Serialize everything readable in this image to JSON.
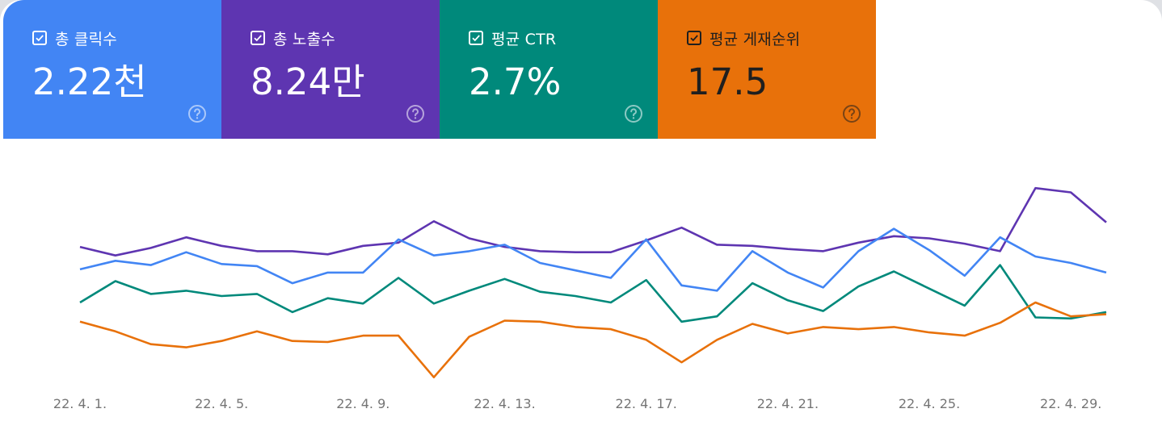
{
  "metrics": [
    {
      "label": "총 클릭수",
      "value": "2.22천",
      "checked": true,
      "color": "#4285f4",
      "text_color": "#ffffff"
    },
    {
      "label": "총 노출수",
      "value": "8.24만",
      "checked": true,
      "color": "#5e35b1",
      "text_color": "#ffffff"
    },
    {
      "label": "평균 CTR",
      "value": "2.7%",
      "checked": true,
      "color": "#00897b",
      "text_color": "#ffffff"
    },
    {
      "label": "평균 게재순위",
      "value": "17.5",
      "checked": true,
      "color": "#e8710a",
      "text_color": "#1f1f1f"
    }
  ],
  "chart_data": {
    "type": "line",
    "x": [
      "22. 4. 1.",
      "22. 4. 2.",
      "22. 4. 3.",
      "22. 4. 4.",
      "22. 4. 5.",
      "22. 4. 6.",
      "22. 4. 7.",
      "22. 4. 8.",
      "22. 4. 9.",
      "22. 4. 10.",
      "22. 4. 11.",
      "22. 4. 12.",
      "22. 4. 13.",
      "22. 4. 14.",
      "22. 4. 15.",
      "22. 4. 16.",
      "22. 4. 17.",
      "22. 4. 18.",
      "22. 4. 19.",
      "22. 4. 20.",
      "22. 4. 21.",
      "22. 4. 22.",
      "22. 4. 23.",
      "22. 4. 24.",
      "22. 4. 25.",
      "22. 4. 26.",
      "22. 4. 27.",
      "22. 4. 28.",
      "22. 4. 29.",
      "22. 4. 30."
    ],
    "x_tick_labels": [
      "22. 4. 1.",
      "22. 4. 5.",
      "22. 4. 9.",
      "22. 4. 13.",
      "22. 4. 17.",
      "22. 4. 21.",
      "22. 4. 25.",
      "22. 4. 29."
    ],
    "x_tick_indices": [
      0,
      4,
      8,
      12,
      16,
      20,
      24,
      28
    ],
    "y_range": [
      0,
      100
    ],
    "grid": false,
    "legend": "none",
    "series": [
      {
        "color": "#5e35b1",
        "values": [
          64.5,
          60.5,
          64,
          69,
          65,
          62.5,
          62.5,
          61,
          65,
          66.5,
          76.5,
          68.5,
          64.5,
          62.5,
          62,
          62,
          67.5,
          73.5,
          65.5,
          65,
          63.5,
          62.5,
          66.5,
          69.5,
          68.5,
          66,
          62.5,
          92,
          90,
          76
        ]
      },
      {
        "color": "#4285f4",
        "values": [
          54,
          58,
          56,
          62,
          56.5,
          55.5,
          47.5,
          52.5,
          52.5,
          68,
          60.5,
          62.5,
          65.5,
          57,
          53.5,
          50,
          68,
          46.5,
          44,
          62.5,
          52.5,
          45.5,
          62.5,
          73,
          63,
          51,
          69,
          60,
          57,
          52.5
        ]
      },
      {
        "color": "#00897b",
        "values": [
          38.5,
          48.5,
          42.5,
          44,
          41.5,
          42.5,
          34,
          40.5,
          38,
          50,
          38,
          44,
          49.5,
          43.5,
          41.5,
          38.5,
          49,
          29.5,
          32,
          47.5,
          39.5,
          34.5,
          46,
          53,
          45,
          37,
          56,
          31.5,
          31,
          34
        ]
      },
      {
        "color": "#e8710a",
        "values": [
          29.5,
          25,
          19,
          17.5,
          20.5,
          25,
          20.5,
          20,
          23,
          23,
          3.5,
          22.5,
          30,
          29.5,
          27,
          26,
          21,
          10.5,
          21,
          28.5,
          24,
          27,
          26,
          27,
          24.5,
          23,
          29,
          38.5,
          32,
          33
        ]
      }
    ]
  }
}
